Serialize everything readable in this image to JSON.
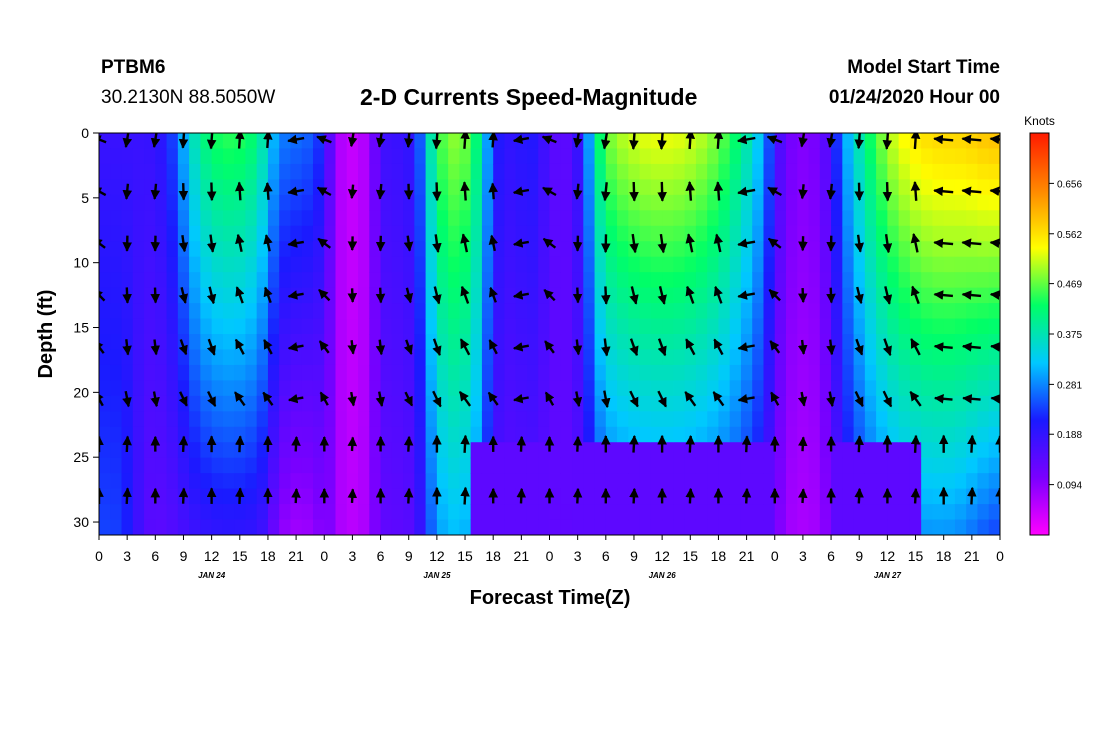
{
  "header": {
    "station_id": "PTBM6",
    "station_coords": "30.2130N 88.5050W",
    "title": "2-D Currents Speed-Magnitude",
    "start_label": "Model Start Time",
    "start_value": "01/24/2020 Hour 00"
  },
  "chart_data": {
    "type": "heatmap",
    "title": "2-D Currents Speed-Magnitude",
    "xlabel": "Forecast Time(Z)",
    "ylabel": "Depth (ft)",
    "x_range_hours": [
      0,
      96
    ],
    "y_range_ft": [
      0,
      31
    ],
    "x_tick_labels": [
      "0",
      "3",
      "6",
      "9",
      "12",
      "15",
      "18",
      "21",
      "0",
      "3",
      "6",
      "9",
      "12",
      "15",
      "18",
      "21",
      "0",
      "3",
      "6",
      "9",
      "12",
      "15",
      "18",
      "21",
      "0",
      "3",
      "6",
      "9",
      "12",
      "15",
      "18",
      "21",
      "0"
    ],
    "y_ticks": [
      0,
      5,
      10,
      15,
      20,
      25,
      30
    ],
    "day_labels": [
      {
        "label": "JAN 24",
        "hour": 12
      },
      {
        "label": "JAN 25",
        "hour": 36
      },
      {
        "label": "JAN 26",
        "hour": 60
      },
      {
        "label": "JAN 27",
        "hour": 84
      }
    ],
    "colorbar": {
      "unit": "Knots",
      "min": 0.0,
      "max": 0.75,
      "tick_values": [
        "0.656",
        "0.562",
        "0.469",
        "0.375",
        "0.281",
        "0.188",
        "0.094"
      ],
      "colors": [
        "#ff00ff",
        "#7a00ff",
        "#1a1aff",
        "#00c8ff",
        "#00ff66",
        "#ffff00",
        "#ff8800",
        "#ff1a00"
      ]
    },
    "arrow_depths_ft": [
      0.5,
      4.5,
      8.5,
      12.5,
      16.5,
      20.5,
      24,
      28
    ],
    "arrow_times_hours": [
      0,
      3,
      6,
      9,
      12,
      15,
      18,
      21,
      24,
      27,
      30,
      33,
      36,
      39,
      42,
      45,
      48,
      51,
      54,
      57,
      60,
      63,
      66,
      69,
      72,
      75,
      78,
      81,
      84,
      87,
      90,
      93,
      96
    ]
  }
}
